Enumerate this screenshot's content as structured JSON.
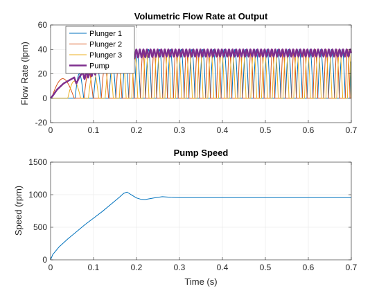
{
  "chart_data": [
    {
      "type": "line",
      "title": "Volumetric Flow Rate at Output",
      "xlabel": "",
      "ylabel": "Flow Rate (lpm)",
      "xlim": [
        0,
        0.7
      ],
      "ylim": [
        -20,
        60
      ],
      "xticks": [
        0,
        0.1,
        0.2,
        0.3,
        0.4,
        0.5,
        0.6,
        0.7
      ],
      "xtick_labels": [
        "0",
        "0.1",
        "0.2",
        "0.3",
        "0.4",
        "0.5",
        "0.6",
        "0.7"
      ],
      "yticks": [
        -20,
        0,
        20,
        40,
        60
      ],
      "ytick_labels": [
        "-20",
        "0",
        "20",
        "40",
        "60"
      ],
      "grid": true,
      "legend": {
        "position": "top-left",
        "entries": [
          "Plunger 1",
          "Plunger 2",
          "Plunger 3",
          "Pump"
        ]
      },
      "series": [
        {
          "name": "Plunger 1",
          "color": "#0072BD",
          "pulses": [
            [
              0.057,
              0.077,
              20
            ],
            [
              0.1,
              0.118,
              24
            ],
            [
              0.136,
              0.152,
              28
            ],
            [
              0.167,
              0.182,
              32
            ],
            [
              0.195,
              0.209,
              36
            ],
            [
              0.221,
              0.235,
              40
            ],
            [
              0.247,
              0.261,
              40
            ],
            [
              0.272,
              0.286,
              40
            ],
            [
              0.297,
              0.311,
              40
            ],
            [
              0.322,
              0.336,
              40
            ],
            [
              0.347,
              0.361,
              40
            ],
            [
              0.372,
              0.386,
              40
            ],
            [
              0.397,
              0.411,
              40
            ],
            [
              0.422,
              0.436,
              40
            ],
            [
              0.447,
              0.461,
              40
            ],
            [
              0.472,
              0.486,
              40
            ],
            [
              0.497,
              0.511,
              40
            ],
            [
              0.522,
              0.536,
              40
            ],
            [
              0.547,
              0.561,
              40
            ],
            [
              0.572,
              0.586,
              40
            ],
            [
              0.597,
              0.611,
              40
            ],
            [
              0.622,
              0.636,
              40
            ],
            [
              0.647,
              0.661,
              40
            ],
            [
              0.672,
              0.686,
              40
            ],
            [
              0.697,
              0.7,
              30
            ]
          ]
        },
        {
          "name": "Plunger 2",
          "color": "#D95319",
          "pulses": [
            [
              0.002,
              0.055,
              16
            ],
            [
              0.078,
              0.099,
              22
            ],
            [
              0.118,
              0.135,
              26
            ],
            [
              0.152,
              0.166,
              30
            ],
            [
              0.182,
              0.194,
              34
            ],
            [
              0.209,
              0.221,
              38
            ],
            [
              0.235,
              0.247,
              40
            ],
            [
              0.261,
              0.272,
              40
            ],
            [
              0.286,
              0.297,
              40
            ],
            [
              0.311,
              0.322,
              40
            ],
            [
              0.336,
              0.347,
              40
            ],
            [
              0.361,
              0.372,
              40
            ],
            [
              0.386,
              0.397,
              40
            ],
            [
              0.411,
              0.422,
              40
            ],
            [
              0.436,
              0.447,
              40
            ],
            [
              0.461,
              0.472,
              40
            ],
            [
              0.486,
              0.497,
              40
            ],
            [
              0.511,
              0.522,
              40
            ],
            [
              0.536,
              0.547,
              40
            ],
            [
              0.561,
              0.572,
              40
            ],
            [
              0.586,
              0.597,
              40
            ],
            [
              0.611,
              0.622,
              40
            ],
            [
              0.636,
              0.647,
              40
            ],
            [
              0.661,
              0.672,
              40
            ],
            [
              0.686,
              0.697,
              40
            ]
          ]
        },
        {
          "name": "Plunger 3",
          "color": "#EDB120",
          "pulses": [
            [
              0.04,
              0.07,
              14
            ],
            [
              0.088,
              0.112,
              23
            ],
            [
              0.127,
              0.146,
              27
            ],
            [
              0.16,
              0.176,
              31
            ],
            [
              0.189,
              0.203,
              35
            ],
            [
              0.215,
              0.229,
              39
            ],
            [
              0.241,
              0.255,
              40
            ],
            [
              0.266,
              0.28,
              40
            ],
            [
              0.291,
              0.305,
              40
            ],
            [
              0.316,
              0.33,
              40
            ],
            [
              0.341,
              0.355,
              40
            ],
            [
              0.366,
              0.38,
              40
            ],
            [
              0.391,
              0.405,
              40
            ],
            [
              0.416,
              0.43,
              40
            ],
            [
              0.441,
              0.455,
              40
            ],
            [
              0.466,
              0.48,
              40
            ],
            [
              0.491,
              0.505,
              40
            ],
            [
              0.516,
              0.53,
              40
            ],
            [
              0.541,
              0.555,
              40
            ],
            [
              0.566,
              0.58,
              40
            ],
            [
              0.591,
              0.605,
              40
            ],
            [
              0.616,
              0.63,
              40
            ],
            [
              0.641,
              0.655,
              40
            ],
            [
              0.666,
              0.68,
              40
            ],
            [
              0.691,
              0.7,
              38
            ]
          ]
        },
        {
          "name": "Pump",
          "color": "#7E2F8E",
          "linewidth": 2.5,
          "x": [
            0,
            0.005,
            0.015,
            0.03,
            0.045,
            0.055,
            0.06,
            0.068,
            0.075
          ],
          "y": [
            0,
            2,
            7,
            12,
            15,
            17,
            12,
            18,
            21
          ],
          "envelope": {
            "x_start": 0.075,
            "low": [
              [
                0.075,
                14
              ],
              [
                0.2,
                32
              ],
              [
                0.26,
                33
              ],
              [
                0.7,
                33
              ]
            ],
            "high": [
              [
                0.075,
                21
              ],
              [
                0.2,
                40
              ],
              [
                0.7,
                40
              ]
            ],
            "period": 0.0083
          }
        }
      ]
    },
    {
      "type": "line",
      "title": "Pump Speed",
      "xlabel": "Time (s)",
      "ylabel": "Speed (rpm)",
      "xlim": [
        0,
        0.7
      ],
      "ylim": [
        0,
        1500
      ],
      "xticks": [
        0,
        0.1,
        0.2,
        0.3,
        0.4,
        0.5,
        0.6,
        0.7
      ],
      "xtick_labels": [
        "0",
        "0.1",
        "0.2",
        "0.3",
        "0.4",
        "0.5",
        "0.6",
        "0.7"
      ],
      "yticks": [
        0,
        500,
        1000,
        1500
      ],
      "ytick_labels": [
        "0",
        "500",
        "1000",
        "1500"
      ],
      "grid": true,
      "series": [
        {
          "color": "#0072BD",
          "x": [
            0,
            0.005,
            0.02,
            0.04,
            0.06,
            0.08,
            0.1,
            0.12,
            0.14,
            0.16,
            0.17,
            0.178,
            0.19,
            0.2,
            0.21,
            0.22,
            0.24,
            0.26,
            0.28,
            0.3,
            0.35,
            0.4,
            0.45,
            0.5,
            0.55,
            0.6,
            0.65,
            0.7
          ],
          "y": [
            0,
            80,
            200,
            320,
            430,
            540,
            640,
            740,
            850,
            960,
            1020,
            1040,
            990,
            950,
            930,
            925,
            950,
            970,
            960,
            955,
            955,
            955,
            955,
            955,
            955,
            955,
            955,
            955
          ]
        }
      ]
    }
  ]
}
